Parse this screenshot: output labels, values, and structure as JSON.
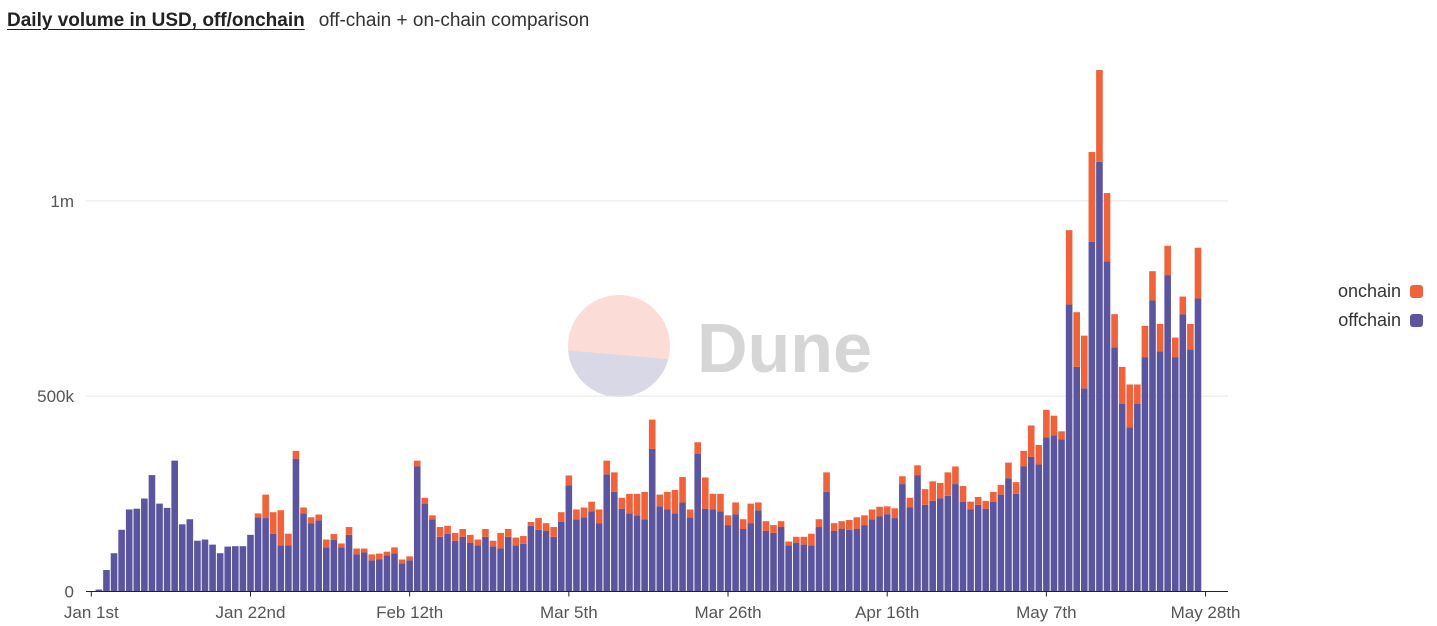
{
  "header": {
    "title": "Daily volume in USD, off/onchain",
    "subtitle": "off-chain + on-chain comparison"
  },
  "watermark": {
    "text": "Dune",
    "circle_top_color": "#fbdcd6",
    "circle_bottom_color": "#d8d8e6"
  },
  "legend": {
    "items": [
      {
        "label": "onchain",
        "color": "#f0623a"
      },
      {
        "label": "offchain",
        "color": "#5b55a0"
      }
    ]
  },
  "chart_data": {
    "type": "bar",
    "stacked": true,
    "title": "Daily volume in USD, off/onchain",
    "xlabel": "",
    "ylabel": "",
    "ylim": [
      0,
      1335000
    ],
    "y_ticks": [
      0,
      500000,
      1000000
    ],
    "y_tick_labels": [
      "0",
      "500k",
      "1m"
    ],
    "x_ticks": [
      0,
      21,
      42,
      63,
      84,
      105,
      126,
      147
    ],
    "x_tick_labels": [
      "Jan 1st",
      "Jan 22nd",
      "Feb 12th",
      "Mar 5th",
      "Mar 26th",
      "Apr 16th",
      "May 7th",
      "May 28th"
    ],
    "legend_position": "right",
    "series": [
      {
        "name": "offchain",
        "color": "#5b55a0",
        "values": [
          0,
          5000,
          55000,
          98000,
          158000,
          210000,
          212000,
          238000,
          298000,
          225000,
          214000,
          335000,
          172000,
          185000,
          130000,
          133000,
          120000,
          98000,
          115000,
          116000,
          116000,
          145000,
          190000,
          188000,
          148000,
          118000,
          118000,
          340000,
          200000,
          175000,
          182000,
          113000,
          132000,
          113000,
          145000,
          95000,
          100000,
          80000,
          82000,
          92000,
          98000,
          72000,
          80000,
          320000,
          225000,
          185000,
          140000,
          148000,
          130000,
          140000,
          125000,
          118000,
          140000,
          115000,
          110000,
          140000,
          118000,
          122000,
          168000,
          158000,
          155000,
          140000,
          178000,
          272000,
          185000,
          190000,
          205000,
          175000,
          300000,
          255000,
          212000,
          200000,
          195000,
          185000,
          365000,
          218000,
          210000,
          200000,
          228000,
          190000,
          352000,
          212000,
          210000,
          205000,
          170000,
          198000,
          160000,
          175000,
          208000,
          155000,
          150000,
          165000,
          118000,
          125000,
          120000,
          118000,
          165000,
          255000,
          155000,
          160000,
          158000,
          160000,
          170000,
          185000,
          192000,
          198000,
          188000,
          275000,
          215000,
          298000,
          222000,
          232000,
          238000,
          245000,
          275000,
          230000,
          210000,
          222000,
          212000,
          230000,
          248000,
          290000,
          250000,
          320000,
          345000,
          325000,
          395000,
          400000,
          390000,
          735000,
          575000,
          520000,
          895000,
          1100000,
          845000,
          625000,
          480000,
          420000,
          480000,
          600000,
          745000,
          615000,
          810000,
          600000,
          710000,
          620000,
          750000
        ]
      },
      {
        "name": "onchain",
        "color": "#f0623a",
        "values": [
          0,
          0,
          0,
          0,
          0,
          0,
          0,
          0,
          0,
          0,
          0,
          0,
          0,
          0,
          0,
          0,
          0,
          0,
          0,
          0,
          0,
          0,
          10000,
          60000,
          55000,
          90000,
          30000,
          20000,
          15000,
          15000,
          15000,
          20000,
          15000,
          10000,
          20000,
          15000,
          10000,
          15000,
          15000,
          10000,
          15000,
          10000,
          10000,
          15000,
          15000,
          10000,
          25000,
          20000,
          20000,
          20000,
          20000,
          15000,
          20000,
          15000,
          40000,
          20000,
          20000,
          20000,
          10000,
          30000,
          20000,
          25000,
          25000,
          25000,
          25000,
          25000,
          25000,
          35000,
          35000,
          50000,
          28000,
          50000,
          55000,
          70000,
          75000,
          30000,
          45000,
          60000,
          65000,
          20000,
          30000,
          80000,
          40000,
          45000,
          25000,
          30000,
          25000,
          50000,
          20000,
          25000,
          20000,
          15000,
          10000,
          15000,
          20000,
          30000,
          20000,
          50000,
          20000,
          20000,
          25000,
          30000,
          25000,
          25000,
          25000,
          20000,
          25000,
          20000,
          25000,
          25000,
          40000,
          50000,
          40000,
          60000,
          45000,
          40000,
          20000,
          20000,
          20000,
          25000,
          25000,
          40000,
          30000,
          40000,
          80000,
          50000,
          70000,
          50000,
          20000,
          190000,
          140000,
          135000,
          230000,
          235000,
          175000,
          85000,
          95000,
          110000,
          50000,
          80000,
          75000,
          70000,
          75000,
          50000,
          45000,
          65000,
          130000
        ]
      }
    ]
  }
}
